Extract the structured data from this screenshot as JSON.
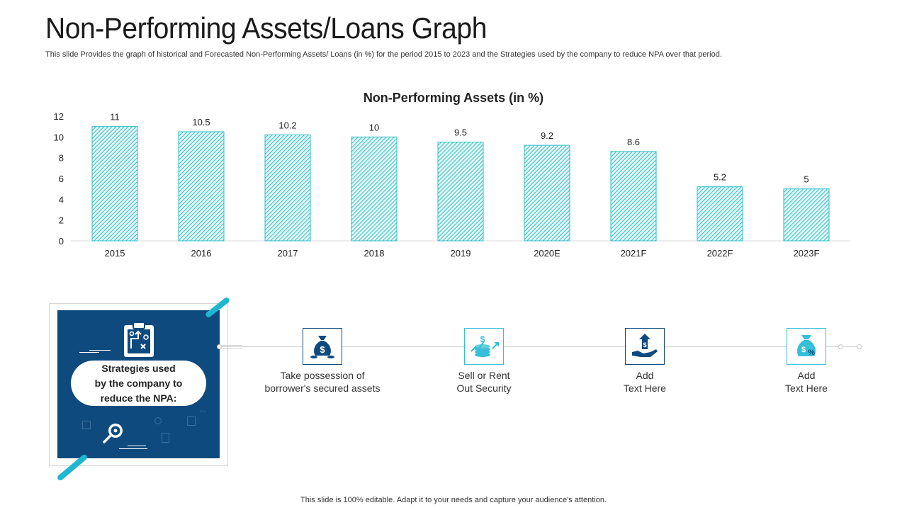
{
  "header": {
    "title": "Non-Performing Assets/Loans Graph",
    "subtitle": "This slide Provides the graph of historical and Forecasted Non-Performing Assets/ Loans (in %) for the period 2015 to 2023 and the Strategies used by the company to reduce NPA over that period."
  },
  "chart_data": {
    "type": "bar",
    "title": "Non-Performing Assets (in %)",
    "categories": [
      "2015",
      "2016",
      "2017",
      "2018",
      "2019",
      "2020E",
      "2021F",
      "2022F",
      "2023F"
    ],
    "values": [
      11,
      10.5,
      10.2,
      10,
      9.5,
      9.2,
      8.6,
      5.2,
      5
    ],
    "value_labels": [
      "11",
      "10.5",
      "10.2",
      "10",
      "9.5",
      "9.2",
      "8.6",
      "5.2",
      "5"
    ],
    "yticks": [
      "0",
      "2",
      "4",
      "6",
      "8",
      "10",
      "12"
    ],
    "ylim": [
      0,
      12
    ],
    "xlabel": "",
    "ylabel": "",
    "bar_color": "#2bbec7"
  },
  "strategies": {
    "card_label": "Strategies used\nby the company to\nreduce the NPA:",
    "items": [
      {
        "label": "Take possession of\nborrower's secured assets",
        "icon": "money-bag-icon"
      },
      {
        "label": "Sell or Rent\nOut Security",
        "icon": "coin-stack-growth-icon"
      },
      {
        "label": "Add\nText Here",
        "icon": "hand-money-up-icon"
      },
      {
        "label": "Add\nText Here",
        "icon": "money-bag-percent-icon"
      }
    ]
  },
  "footer": {
    "text": "This slide is 100% editable. Adapt it to your needs and capture your audience's attention."
  },
  "colors": {
    "navy": "#0e4a7e",
    "teal": "#2bbec7",
    "accent": "#1eb6d0"
  }
}
